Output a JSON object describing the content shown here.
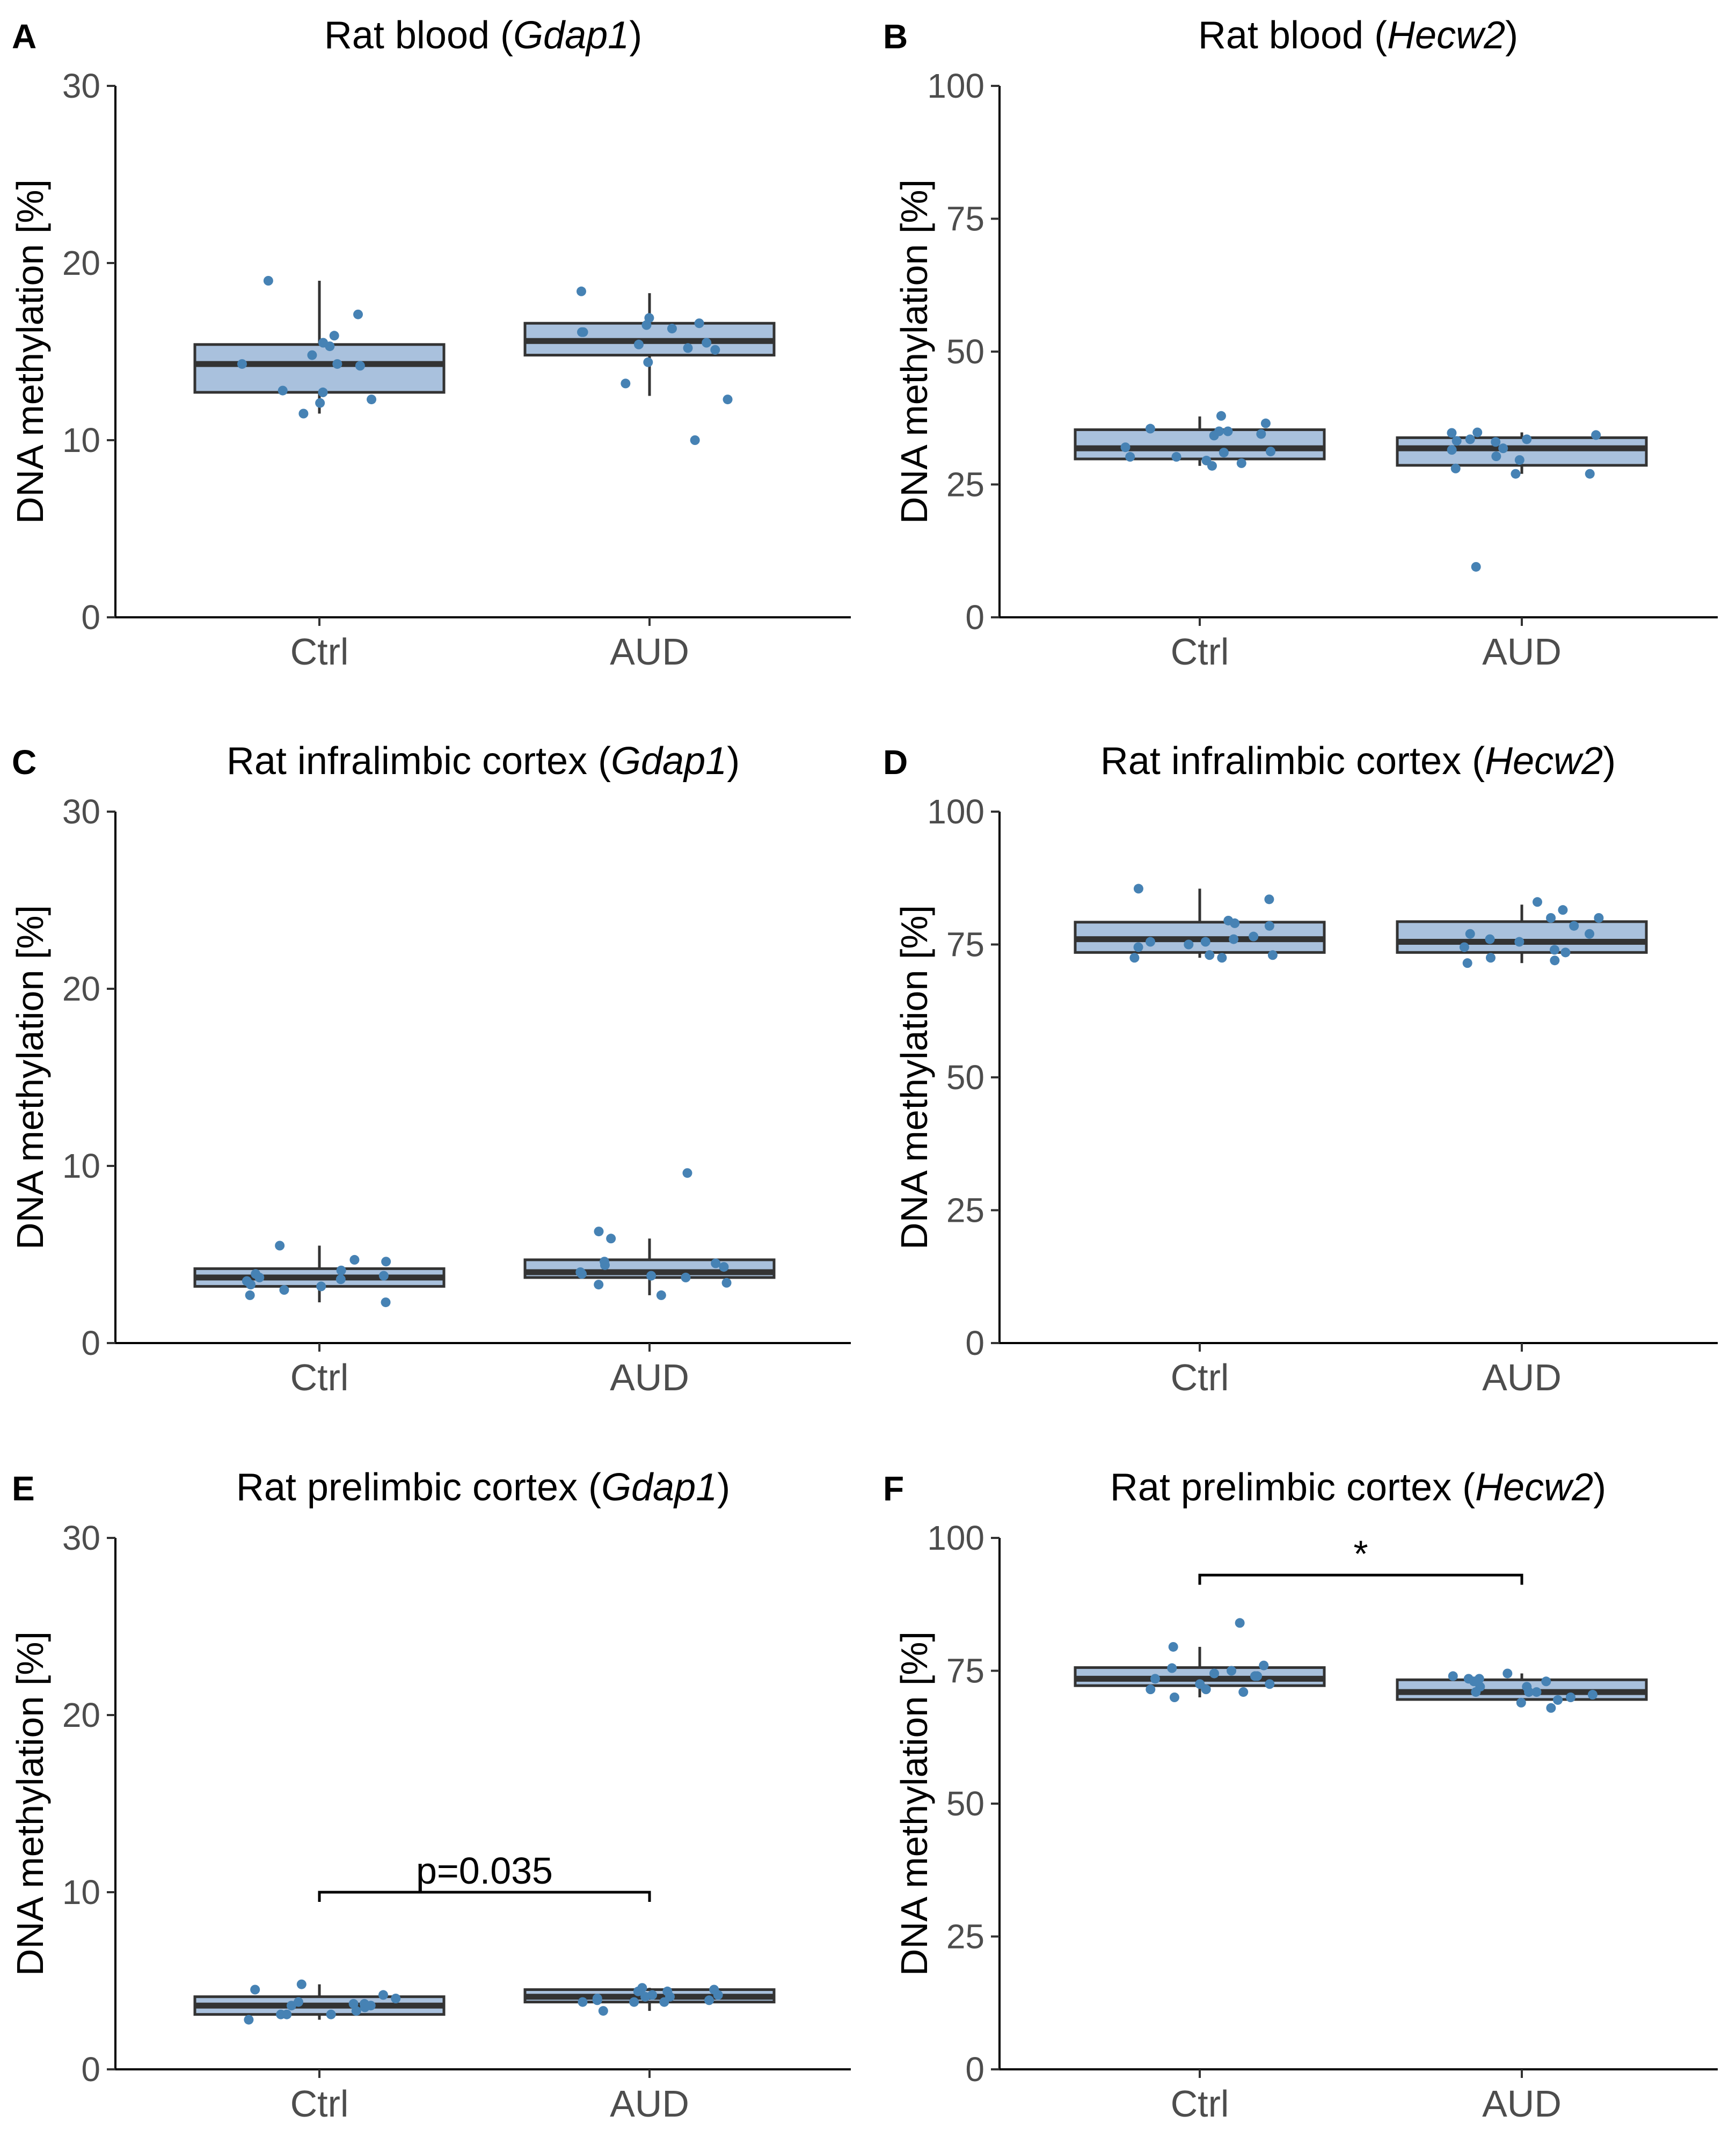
{
  "chart_data": [
    {
      "type": "box",
      "letter": "A",
      "title_prefix": "Rat blood (",
      "gene": "Gdap1",
      "title_suffix": ")",
      "ylabel": "DNA methylation [%]",
      "ylim": [
        0,
        30
      ],
      "yticks": [
        0,
        10,
        20,
        30
      ],
      "categories": [
        "Ctrl",
        "AUD"
      ],
      "boxes": [
        {
          "group": "Ctrl",
          "min": 11.5,
          "q1": 12.7,
          "median": 14.3,
          "q3": 15.4,
          "max": 19.0
        },
        {
          "group": "AUD",
          "min": 12.5,
          "q1": 14.8,
          "median": 15.6,
          "q3": 16.6,
          "max": 18.3
        }
      ],
      "points": [
        {
          "group": "Ctrl",
          "values": [
            19.0,
            17.1,
            15.3,
            14.8,
            12.8,
            12.3,
            14.2,
            12.1,
            15.5,
            12.7,
            14.3,
            15.9,
            14.3,
            11.5
          ]
        },
        {
          "group": "AUD",
          "values": [
            10.0,
            15.5,
            16.3,
            16.1,
            16.9,
            16.6,
            15.2,
            16.1,
            15.4,
            12.3,
            15.1,
            16.5,
            13.2,
            14.4,
            18.4
          ]
        }
      ],
      "annotation": null
    },
    {
      "type": "box",
      "letter": "B",
      "title_prefix": "Rat blood (",
      "gene": "Hecw2",
      "title_suffix": ")",
      "ylabel": "DNA methylation [%]",
      "ylim": [
        0,
        100
      ],
      "yticks": [
        0,
        25,
        50,
        75,
        100
      ],
      "categories": [
        "Ctrl",
        "AUD"
      ],
      "boxes": [
        {
          "group": "Ctrl",
          "min": 28.5,
          "q1": 29.8,
          "median": 31.8,
          "q3": 35.3,
          "max": 37.8
        },
        {
          "group": "AUD",
          "min": 27.0,
          "q1": 28.6,
          "median": 31.8,
          "q3": 33.8,
          "max": 34.8
        }
      ],
      "points": [
        {
          "group": "Ctrl",
          "values": [
            34.2,
            32.0,
            30.2,
            34.5,
            35.5,
            36.5,
            31.0,
            29.0,
            30.2,
            35.0,
            31.2,
            28.5,
            29.5,
            37.9,
            35.0
          ]
        },
        {
          "group": "AUD",
          "values": [
            33.0,
            31.5,
            28.0,
            34.3,
            34.7,
            9.5,
            33.5,
            29.6,
            30.3,
            33.2,
            31.8,
            27.0,
            27.0,
            34.8,
            33.5
          ]
        }
      ],
      "annotation": null
    },
    {
      "type": "box",
      "letter": "C",
      "title_prefix": "Rat infralimbic cortex (",
      "gene": "Gdap1",
      "title_suffix": ")",
      "ylabel": "DNA methylation [%]",
      "ylim": [
        0,
        30
      ],
      "yticks": [
        0,
        10,
        20,
        30
      ],
      "categories": [
        "Ctrl",
        "AUD"
      ],
      "boxes": [
        {
          "group": "Ctrl",
          "min": 2.3,
          "q1": 3.2,
          "median": 3.7,
          "q3": 4.2,
          "max": 5.5
        },
        {
          "group": "AUD",
          "min": 2.7,
          "q1": 3.7,
          "median": 4.0,
          "q3": 4.7,
          "max": 5.9
        }
      ],
      "points": [
        {
          "group": "Ctrl",
          "values": [
            3.6,
            3.2,
            2.3,
            4.7,
            3.9,
            3.0,
            3.8,
            4.1,
            4.6,
            3.3,
            3.7,
            2.7,
            3.5,
            5.5
          ]
        },
        {
          "group": "AUD",
          "values": [
            4.3,
            4.5,
            9.6,
            3.9,
            3.4,
            2.7,
            6.3,
            3.7,
            4.4,
            3.3,
            5.9,
            4.0,
            3.8,
            4.6
          ]
        }
      ],
      "annotation": null
    },
    {
      "type": "box",
      "letter": "D",
      "title_prefix": "Rat infralimbic cortex (",
      "gene": "Hecw2",
      "title_suffix": ")",
      "ylabel": "DNA methylation [%]",
      "ylim": [
        0,
        100
      ],
      "yticks": [
        0,
        25,
        50,
        75,
        100
      ],
      "categories": [
        "Ctrl",
        "AUD"
      ],
      "boxes": [
        {
          "group": "Ctrl",
          "min": 72.5,
          "q1": 73.5,
          "median": 76.0,
          "q3": 79.2,
          "max": 85.5
        },
        {
          "group": "AUD",
          "min": 71.5,
          "q1": 73.5,
          "median": 75.5,
          "q3": 79.3,
          "max": 82.5
        }
      ],
      "points": [
        {
          "group": "Ctrl",
          "values": [
            73.0,
            78.5,
            79.0,
            75.5,
            75.0,
            76.5,
            79.5,
            72.5,
            73.0,
            83.5,
            72.5,
            74.5,
            75.5,
            85.5,
            76.0
          ]
        },
        {
          "group": "AUD",
          "values": [
            74.0,
            78.5,
            72.5,
            77.0,
            76.0,
            71.5,
            80.0,
            77.0,
            74.5,
            72.0,
            83.0,
            80.0,
            75.5,
            81.5,
            73.5
          ]
        }
      ],
      "annotation": null
    },
    {
      "type": "box",
      "letter": "E",
      "title_prefix": "Rat prelimbic cortex (",
      "gene": "Gdap1",
      "title_suffix": ")",
      "ylabel": "DNA methylation [%]",
      "ylim": [
        0,
        30
      ],
      "yticks": [
        0,
        10,
        20,
        30
      ],
      "categories": [
        "Ctrl",
        "AUD"
      ],
      "boxes": [
        {
          "group": "Ctrl",
          "min": 2.8,
          "q1": 3.1,
          "median": 3.6,
          "q3": 4.1,
          "max": 4.8
        },
        {
          "group": "AUD",
          "min": 3.3,
          "q1": 3.8,
          "median": 4.1,
          "q3": 4.5,
          "max": 4.6
        }
      ],
      "points": [
        {
          "group": "Ctrl",
          "values": [
            3.7,
            4.8,
            3.3,
            3.1,
            2.8,
            3.6,
            4.0,
            3.1,
            3.6,
            3.5,
            3.8,
            3.7,
            4.5,
            4.2,
            3.1
          ]
        },
        {
          "group": "AUD",
          "values": [
            4.1,
            3.8,
            4.2,
            4.5,
            3.9,
            4.4,
            3.8,
            4.2,
            3.9,
            4.4,
            4.1,
            3.3,
            4.0,
            3.8,
            4.6
          ]
        }
      ],
      "annotation": {
        "label": "p=0.035",
        "y": 10
      }
    },
    {
      "type": "box",
      "letter": "F",
      "title_prefix": "Rat prelimbic cortex (",
      "gene": "Hecw2",
      "title_suffix": ")",
      "ylabel": "DNA methylation [%]",
      "ylim": [
        0,
        100
      ],
      "yticks": [
        0,
        25,
        50,
        75,
        100
      ],
      "categories": [
        "Ctrl",
        "AUD"
      ],
      "boxes": [
        {
          "group": "Ctrl",
          "min": 70.0,
          "q1": 72.2,
          "median": 73.5,
          "q3": 75.6,
          "max": 79.5
        },
        {
          "group": "AUD",
          "min": 68.5,
          "q1": 69.6,
          "median": 71.0,
          "q3": 73.3,
          "max": 74.5
        }
      ],
      "points": [
        {
          "group": "Ctrl",
          "values": [
            75.5,
            74.0,
            71.5,
            79.5,
            72.5,
            73.5,
            75.0,
            74.5,
            72.5,
            76.0,
            74.0,
            71.5,
            84.0,
            70.0,
            71.0
          ]
        },
        {
          "group": "AUD",
          "values": [
            73.0,
            72.0,
            73.5,
            74.0,
            70.0,
            71.0,
            69.0,
            73.5,
            70.5,
            72.0,
            71.0,
            69.5,
            71.0,
            73.0,
            68.0,
            74.5
          ]
        }
      ],
      "annotation": {
        "label": "*",
        "y": 93
      }
    }
  ]
}
